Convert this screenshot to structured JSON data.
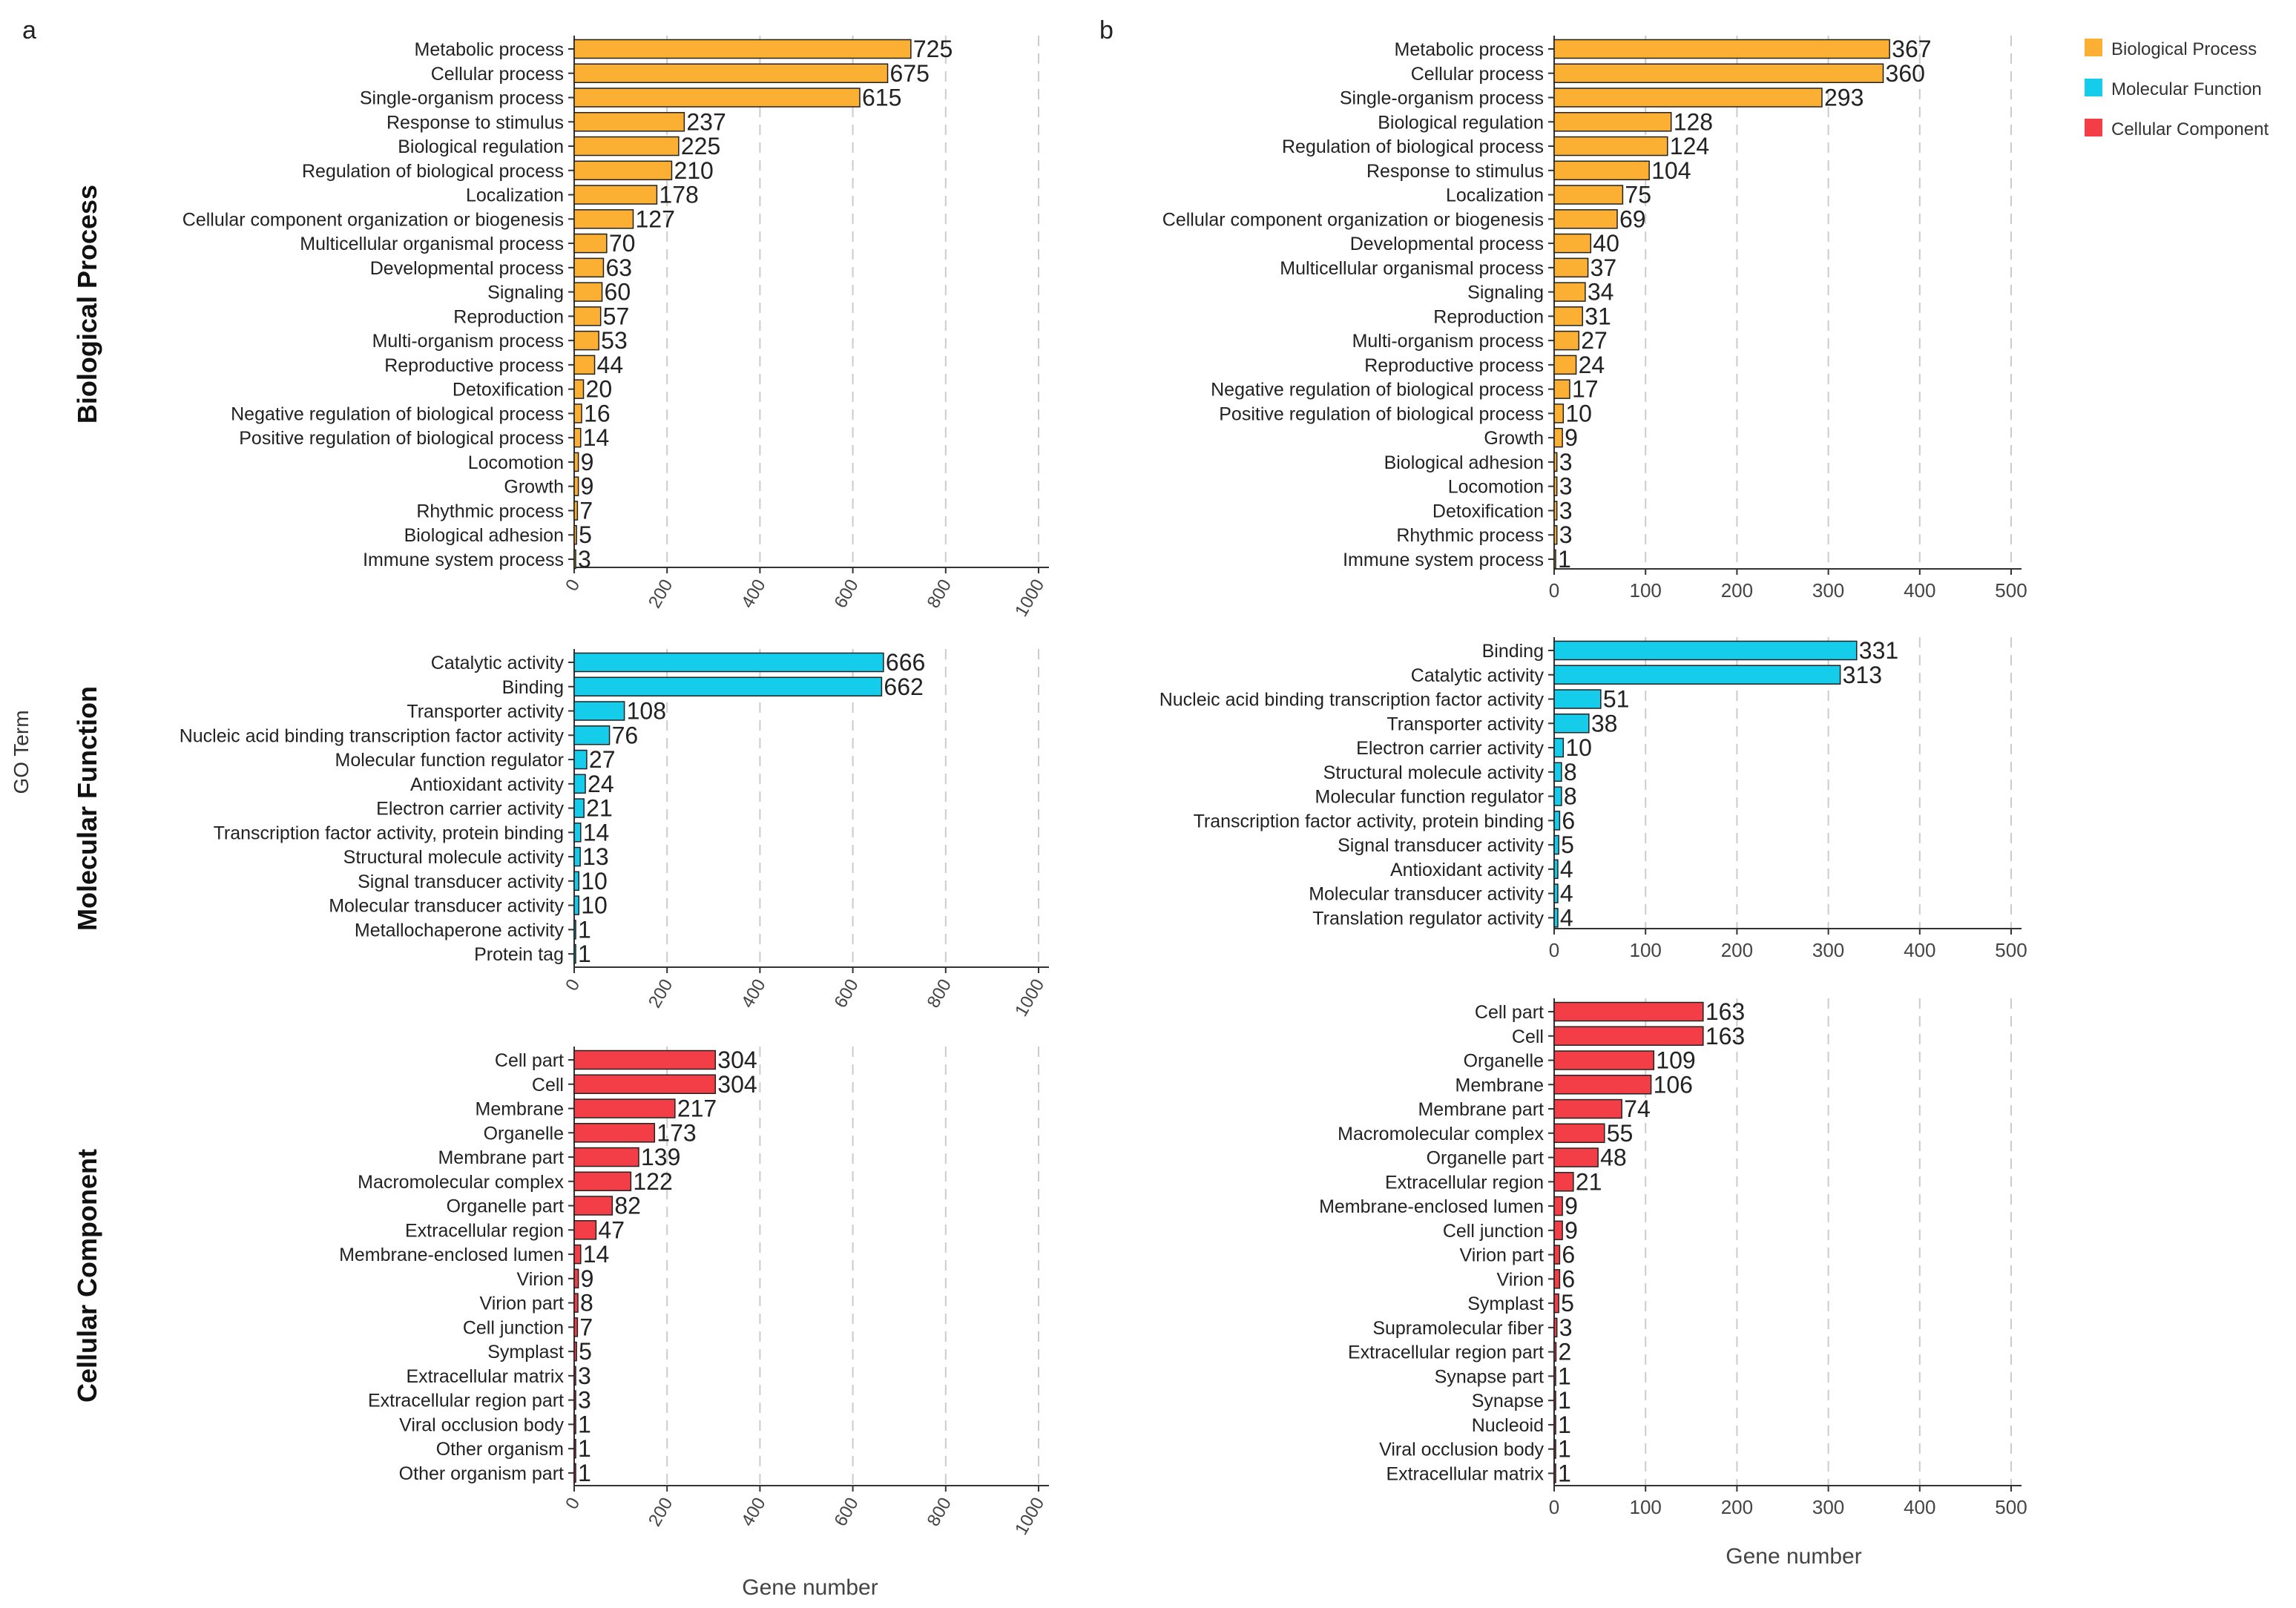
{
  "panel_letters": [
    "a",
    "b"
  ],
  "go_term_label": "GO Term",
  "xlabel": "Gene number",
  "legend": [
    {
      "label": "Biological Process",
      "color": "#FBAF33"
    },
    {
      "label": "Molecular Function",
      "color": "#16CCEB"
    },
    {
      "label": "Cellular Component",
      "color": "#F43E47"
    }
  ],
  "colors": {
    "bp": "#FBAF33",
    "mf": "#16CCEB",
    "cc": "#F43E47",
    "bar_stroke": "#222222",
    "axis": "#333333",
    "grid": "#cccccc",
    "text": "#222222",
    "tick_text": "#444444"
  },
  "chart_data": [
    {
      "type": "bar",
      "orientation": "horizontal",
      "panel": "a",
      "category_group": "Biological Process",
      "color_key": "bp",
      "ylabel": "Biological Process",
      "xlim": [
        0,
        1000
      ],
      "xticks": [
        0,
        200,
        400,
        600,
        800,
        1000
      ],
      "xtick_labels": [
        "0",
        "200",
        "400",
        "600",
        "800",
        "1000"
      ],
      "xtick_rotation": -60,
      "grid": true,
      "categories": [
        "Metabolic process",
        "Cellular process",
        "Single-organism process",
        "Response to stimulus",
        "Biological regulation",
        "Regulation of biological process",
        "Localization",
        "Cellular component organization or biogenesis",
        "Multicellular organismal process",
        "Developmental process",
        "Signaling",
        "Reproduction",
        "Multi-organism process",
        "Reproductive process",
        "Detoxification",
        "Negative regulation of biological process",
        "Positive regulation of biological process",
        "Locomotion",
        "Growth",
        "Rhythmic process",
        "Biological adhesion",
        "Immune system process"
      ],
      "values": [
        725,
        675,
        615,
        237,
        225,
        210,
        178,
        127,
        70,
        63,
        60,
        57,
        53,
        44,
        20,
        16,
        14,
        9,
        9,
        7,
        5,
        3
      ]
    },
    {
      "type": "bar",
      "orientation": "horizontal",
      "panel": "a",
      "category_group": "Molecular Function",
      "color_key": "mf",
      "ylabel": "Molecular Function",
      "xlim": [
        0,
        1000
      ],
      "xticks": [
        0,
        200,
        400,
        600,
        800,
        1000
      ],
      "xtick_labels": [
        "0",
        "200",
        "400",
        "600",
        "800",
        "1000"
      ],
      "xtick_rotation": -60,
      "grid": true,
      "categories": [
        "Catalytic activity",
        "Binding",
        "Transporter activity",
        "Nucleic acid binding transcription factor activity",
        "Molecular function regulator",
        "Antioxidant activity",
        "Electron carrier activity",
        "Transcription factor activity, protein binding",
        "Structural molecule activity",
        "Signal transducer activity",
        "Molecular transducer activity",
        "Metallochaperone activity",
        "Protein tag"
      ],
      "values": [
        666,
        662,
        108,
        76,
        27,
        24,
        21,
        14,
        13,
        10,
        10,
        1,
        1
      ]
    },
    {
      "type": "bar",
      "orientation": "horizontal",
      "panel": "a",
      "category_group": "Cellular Component",
      "color_key": "cc",
      "ylabel": "Cellular Component",
      "xlim": [
        0,
        1000
      ],
      "xticks": [
        0,
        200,
        400,
        600,
        800,
        1000
      ],
      "xtick_labels": [
        "0",
        "200",
        "400",
        "600",
        "800",
        "1000"
      ],
      "xtick_rotation": -60,
      "grid": true,
      "categories": [
        "Cell part",
        "Cell",
        "Membrane",
        "Organelle",
        "Membrane part",
        "Macromolecular complex",
        "Organelle part",
        "Extracellular region",
        "Membrane-enclosed lumen",
        "Virion",
        "Virion part",
        "Cell junction",
        "Symplast",
        "Extracellular matrix",
        "Extracellular region part",
        "Viral occlusion body",
        "Other organism",
        "Other organism part"
      ],
      "values": [
        304,
        304,
        217,
        173,
        139,
        122,
        82,
        47,
        14,
        9,
        8,
        7,
        5,
        3,
        3,
        1,
        1,
        1
      ]
    },
    {
      "type": "bar",
      "orientation": "horizontal",
      "panel": "b",
      "category_group": "Biological Process",
      "color_key": "bp",
      "xlim": [
        0,
        500
      ],
      "xticks": [
        0,
        100,
        200,
        300,
        400,
        500
      ],
      "xtick_labels": [
        "0",
        "100",
        "200",
        "300",
        "400",
        "500"
      ],
      "xtick_rotation": 0,
      "grid": true,
      "categories": [
        "Metabolic process",
        "Cellular process",
        "Single-organism process",
        "Biological regulation",
        "Regulation of biological process",
        "Response to stimulus",
        "Localization",
        "Cellular component organization or biogenesis",
        "Developmental process",
        "Multicellular organismal process",
        "Signaling",
        "Reproduction",
        "Multi-organism process",
        "Reproductive process",
        "Negative regulation of biological process",
        "Positive regulation of biological process",
        "Growth",
        "Biological adhesion",
        "Locomotion",
        "Detoxification",
        "Rhythmic process",
        "Immune system process"
      ],
      "values": [
        367,
        360,
        293,
        128,
        124,
        104,
        75,
        69,
        40,
        37,
        34,
        31,
        27,
        24,
        17,
        10,
        9,
        3,
        3,
        3,
        3,
        1
      ]
    },
    {
      "type": "bar",
      "orientation": "horizontal",
      "panel": "b",
      "category_group": "Molecular Function",
      "color_key": "mf",
      "xlim": [
        0,
        500
      ],
      "xticks": [
        0,
        100,
        200,
        300,
        400,
        500
      ],
      "xtick_labels": [
        "0",
        "100",
        "200",
        "300",
        "400",
        "500"
      ],
      "xtick_rotation": 0,
      "grid": true,
      "categories": [
        "Binding",
        "Catalytic activity",
        "Nucleic acid binding transcription factor activity",
        "Transporter activity",
        "Electron carrier activity",
        "Structural molecule activity",
        "Molecular function regulator",
        "Transcription factor activity, protein binding",
        "Signal transducer activity",
        "Antioxidant activity",
        "Molecular transducer activity",
        "Translation regulator activity"
      ],
      "values": [
        331,
        313,
        51,
        38,
        10,
        8,
        8,
        6,
        5,
        4,
        4,
        4
      ]
    },
    {
      "type": "bar",
      "orientation": "horizontal",
      "panel": "b",
      "category_group": "Cellular Component",
      "color_key": "cc",
      "xlim": [
        0,
        500
      ],
      "xticks": [
        0,
        100,
        200,
        300,
        400,
        500
      ],
      "xtick_labels": [
        "0",
        "100",
        "200",
        "300",
        "400",
        "500"
      ],
      "xtick_rotation": 0,
      "grid": true,
      "categories": [
        "Cell part",
        "Cell",
        "Organelle",
        "Membrane",
        "Membrane part",
        "Macromolecular complex",
        "Organelle part",
        "Extracellular region",
        "Membrane-enclosed lumen",
        "Cell junction",
        "Virion part",
        "Virion",
        "Symplast",
        "Supramolecular fiber",
        "Extracellular region part",
        "Synapse part",
        "Synapse",
        "Nucleoid",
        "Viral occlusion body",
        "Extracellular matrix"
      ],
      "values": [
        163,
        163,
        109,
        106,
        74,
        55,
        48,
        21,
        9,
        9,
        6,
        6,
        5,
        3,
        2,
        1,
        1,
        1,
        1,
        1
      ]
    }
  ]
}
